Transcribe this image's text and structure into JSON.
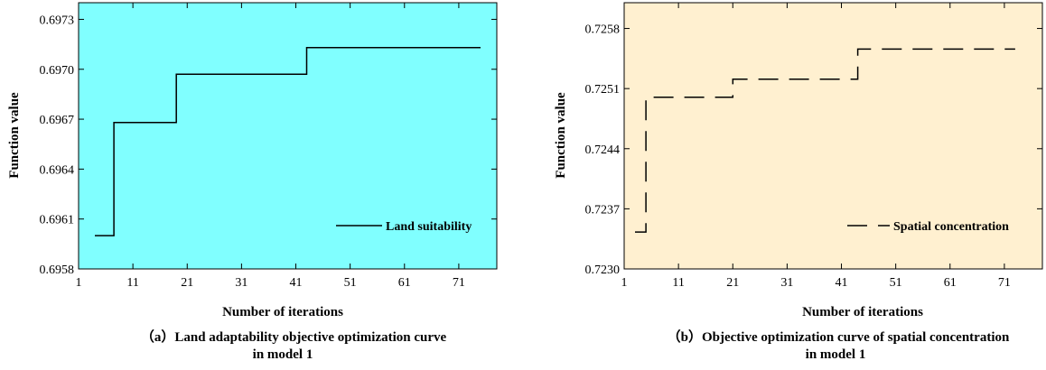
{
  "chart_data": [
    {
      "type": "line",
      "line_style": "solid",
      "plot_background": "#80ffff",
      "xlabel": "Number of iterations",
      "ylabel": "Function value",
      "xlim": [
        1,
        78
      ],
      "ylim": [
        0.6958,
        0.6974
      ],
      "x_ticks": [
        1,
        11,
        21,
        31,
        41,
        51,
        61,
        71
      ],
      "y_ticks": [
        0.6958,
        0.6961,
        0.6964,
        0.6967,
        0.697,
        0.6973
      ],
      "y_tick_labels": [
        "0.6958",
        "0.6961",
        "0.6964",
        "0.6967",
        "0.6970",
        "0.6973"
      ],
      "legend_position": "lower-right",
      "series": [
        {
          "name": "Land suitability",
          "step_points": [
            [
              4,
              0.696
            ],
            [
              7.5,
              0.696
            ],
            [
              7.5,
              0.69668
            ],
            [
              19,
              0.69668
            ],
            [
              19,
              0.69697
            ],
            [
              43,
              0.69697
            ],
            [
              43,
              0.69713
            ],
            [
              75,
              0.69713
            ]
          ]
        }
      ],
      "caption_prefix": "（a）",
      "caption_line1": "Land adaptability objective optimization curve",
      "caption_line2": "in model 1"
    },
    {
      "type": "line",
      "line_style": "dashed",
      "plot_background": "#fff0d0",
      "xlabel": "Number of iterations",
      "ylabel": "Function value",
      "xlim": [
        1,
        78
      ],
      "ylim": [
        0.723,
        0.7261
      ],
      "x_ticks": [
        1,
        11,
        21,
        31,
        41,
        51,
        61,
        71
      ],
      "y_ticks": [
        0.723,
        0.7237,
        0.7244,
        0.7251,
        0.7258
      ],
      "y_tick_labels": [
        "0.7230",
        "0.7237",
        "0.7244",
        "0.7251",
        "0.7258"
      ],
      "legend_position": "lower-right",
      "series": [
        {
          "name": "Spatial concentration",
          "step_points": [
            [
              3,
              0.72343
            ],
            [
              5,
              0.72343
            ],
            [
              5,
              0.725
            ],
            [
              21,
              0.725
            ],
            [
              21,
              0.72521
            ],
            [
              44,
              0.72521
            ],
            [
              44,
              0.72556
            ],
            [
              73,
              0.72556
            ]
          ]
        }
      ],
      "caption_prefix": "（b）",
      "caption_line1": "Objective optimization curve of spatial concentration",
      "caption_line2": "in model 1"
    }
  ]
}
